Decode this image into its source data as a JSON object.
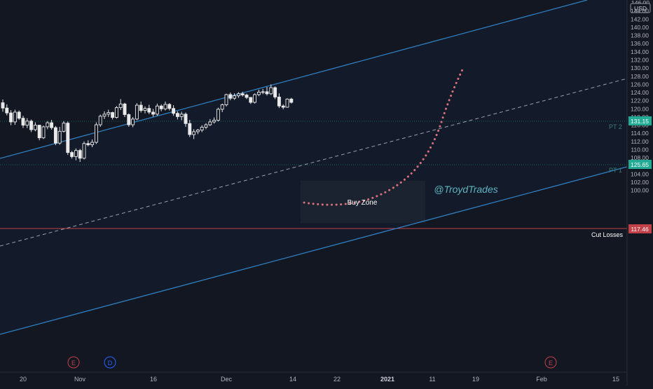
{
  "colors": {
    "background": "#131722",
    "channel_line": "#2f7fc1",
    "channel_fill": "#131b2b",
    "dashed_mid": "#9aa0a6",
    "candle": "#e9e9ea",
    "cut_loss": "#c24048",
    "pt_line": "#1f5e54",
    "pt_tag": "#22ab94",
    "projection": "#d9707a",
    "handle": "#5fb4c0",
    "axis_text": "#b2b5be",
    "earnings_badge": "#c24048",
    "dividend_badge": "#2962ff"
  },
  "price_axis": {
    "currency": "USD",
    "top_clipped_label": "146.00",
    "ticks": [
      "144.00",
      "142.00",
      "140.00",
      "138.00",
      "136.00",
      "134.00",
      "132.00",
      "130.00",
      "128.00",
      "126.00",
      "124.00",
      "122.00",
      "120.00",
      "118.00",
      "116.00",
      "114.00",
      "112.00",
      "110.00",
      "108.00",
      "106.00",
      "104.00",
      "102.00",
      "100.00"
    ],
    "tag_pt2": "131.15",
    "tag_pt1": "125.65",
    "tag_cut": "117.46"
  },
  "time_axis": {
    "labels": [
      {
        "text": "20",
        "bold": false
      },
      {
        "text": "Nov",
        "bold": false
      },
      {
        "text": "16",
        "bold": false
      },
      {
        "text": "Dec",
        "bold": false
      },
      {
        "text": "14",
        "bold": false
      },
      {
        "text": "22",
        "bold": false
      },
      {
        "text": "2021",
        "bold": true
      },
      {
        "text": "11",
        "bold": false
      },
      {
        "text": "19",
        "bold": false
      },
      {
        "text": "Feb",
        "bold": false
      },
      {
        "text": "15",
        "bold": false
      }
    ]
  },
  "annotations": {
    "pt2": "PT 2",
    "pt1": "PT 1",
    "cut_losses": "Cut Losses",
    "buy_zone": "Buy Zone",
    "handle": "@TroydTrades"
  },
  "events": [
    {
      "letter": "E",
      "kind": "earnings"
    },
    {
      "letter": "D",
      "kind": "dividend"
    },
    {
      "letter": "E",
      "kind": "earnings"
    }
  ],
  "chart_data": {
    "type": "candlestick",
    "symbol_currency": "USD",
    "ylim": [
      99.2,
      146.0
    ],
    "levels": [
      {
        "name": "PT 2",
        "price": 131.15
      },
      {
        "name": "PT 1",
        "price": 125.65
      },
      {
        "name": "Cut Losses",
        "price": 117.46
      }
    ],
    "buy_zone": {
      "low": 118.4,
      "high": 123.6
    },
    "candles": [
      [
        121.5,
        122.3,
        119.3,
        120.2
      ],
      [
        120.2,
        121.1,
        118.4,
        119.0
      ],
      [
        119.0,
        119.7,
        116.0,
        116.8
      ],
      [
        116.8,
        119.8,
        116.1,
        119.2
      ],
      [
        119.2,
        119.6,
        117.3,
        117.7
      ],
      [
        117.7,
        118.3,
        115.3,
        116.0
      ],
      [
        116.0,
        117.7,
        115.3,
        117.0
      ],
      [
        117.0,
        117.4,
        114.3,
        114.9
      ],
      [
        114.9,
        116.7,
        114.5,
        116.0
      ],
      [
        116.0,
        116.1,
        112.3,
        112.9
      ],
      [
        112.9,
        115.9,
        112.6,
        115.6
      ],
      [
        115.6,
        117.0,
        115.0,
        116.6
      ],
      [
        116.6,
        117.3,
        114.9,
        115.4
      ],
      [
        115.4,
        115.8,
        111.1,
        111.6
      ],
      [
        111.6,
        115.6,
        111.2,
        114.5
      ],
      [
        114.5,
        117.0,
        114.2,
        116.5
      ],
      [
        116.5,
        116.9,
        108.7,
        109.3
      ],
      [
        109.3,
        109.7,
        107.8,
        108.3
      ],
      [
        108.3,
        110.3,
        107.4,
        109.8
      ],
      [
        109.8,
        110.2,
        107.0,
        107.9
      ],
      [
        107.9,
        112.0,
        107.6,
        111.5
      ],
      [
        111.5,
        112.3,
        110.8,
        111.2
      ],
      [
        111.2,
        112.5,
        110.6,
        111.8
      ],
      [
        111.8,
        116.7,
        111.4,
        116.1
      ],
      [
        116.1,
        118.6,
        115.6,
        118.2
      ],
      [
        118.2,
        119.4,
        117.5,
        118.7
      ],
      [
        118.7,
        119.8,
        118.0,
        119.1
      ],
      [
        119.1,
        119.3,
        117.4,
        117.9
      ],
      [
        117.9,
        120.7,
        117.6,
        120.3
      ],
      [
        120.3,
        122.4,
        119.7,
        121.2
      ],
      [
        121.2,
        121.5,
        118.0,
        118.6
      ],
      [
        118.6,
        118.9,
        115.6,
        116.1
      ],
      [
        116.1,
        118.0,
        115.5,
        117.5
      ],
      [
        117.5,
        121.4,
        117.2,
        120.9
      ],
      [
        120.9,
        121.8,
        119.1,
        119.6
      ],
      [
        119.6,
        120.6,
        118.9,
        120.1
      ],
      [
        120.1,
        121.0,
        118.7,
        119.2
      ],
      [
        119.2,
        120.0,
        118.1,
        118.7
      ],
      [
        118.7,
        121.3,
        118.3,
        120.7
      ],
      [
        120.7,
        121.1,
        119.4,
        120.0
      ],
      [
        120.0,
        121.8,
        119.6,
        121.1
      ],
      [
        121.1,
        121.4,
        119.6,
        120.1
      ],
      [
        120.1,
        120.9,
        118.3,
        118.9
      ],
      [
        118.9,
        119.4,
        117.4,
        118.1
      ],
      [
        118.1,
        119.3,
        117.2,
        118.7
      ],
      [
        118.7,
        119.1,
        115.6,
        116.4
      ],
      [
        116.4,
        117.3,
        113.1,
        113.7
      ],
      [
        113.7,
        115.0,
        112.6,
        114.4
      ],
      [
        114.4,
        115.1,
        113.8,
        114.8
      ],
      [
        114.8,
        116.0,
        114.3,
        115.5
      ],
      [
        115.5,
        116.5,
        115.0,
        116.1
      ],
      [
        116.1,
        117.5,
        115.8,
        116.8
      ],
      [
        116.8,
        117.9,
        116.4,
        117.2
      ],
      [
        117.2,
        120.3,
        116.9,
        119.9
      ],
      [
        119.9,
        121.3,
        119.2,
        121.0
      ],
      [
        121.0,
        123.7,
        120.6,
        123.5
      ],
      [
        123.5,
        124.0,
        122.1,
        122.6
      ],
      [
        122.6,
        123.8,
        122.2,
        123.2
      ],
      [
        123.2,
        124.1,
        122.7,
        123.7
      ],
      [
        123.7,
        124.2,
        123.0,
        123.4
      ],
      [
        123.4,
        123.7,
        122.4,
        122.8
      ],
      [
        122.8,
        122.9,
        121.2,
        121.6
      ],
      [
        121.6,
        123.8,
        121.3,
        123.5
      ],
      [
        123.5,
        124.7,
        123.1,
        124.1
      ],
      [
        124.1,
        124.9,
        123.6,
        124.2
      ],
      [
        124.2,
        125.4,
        123.3,
        123.7
      ],
      [
        123.7,
        126.0,
        123.4,
        125.2
      ],
      [
        125.2,
        125.5,
        122.4,
        122.9
      ],
      [
        122.9,
        123.8,
        120.2,
        120.7
      ],
      [
        120.7,
        121.1,
        119.9,
        120.4
      ],
      [
        120.4,
        122.6,
        120.3,
        122.4
      ],
      [
        122.4,
        122.7,
        121.3,
        121.6
      ]
    ],
    "projection_path_note": "dotted projected path from Buy Zone toward ~138"
  }
}
